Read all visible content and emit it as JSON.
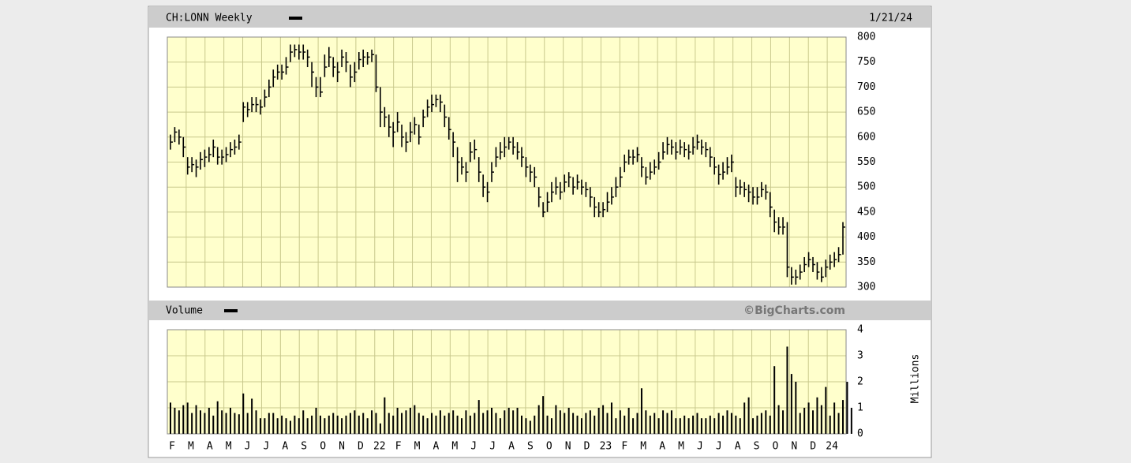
{
  "chart_data": [
    {
      "type": "ohlc",
      "title": "CH:LONN Weekly",
      "date": "1/21/24",
      "plot_color": "#ffffcc",
      "grid_color": "#c8c88c",
      "bar_color": "#000000",
      "grid": true,
      "categories": [
        "F",
        "M",
        "A",
        "M",
        "J",
        "J",
        "A",
        "S",
        "O",
        "N",
        "D",
        "22",
        "F",
        "M",
        "A",
        "M",
        "J",
        "J",
        "A",
        "S",
        "O",
        "N",
        "D",
        "23",
        "F",
        "M",
        "A",
        "M",
        "J",
        "J",
        "A",
        "S",
        "O",
        "N",
        "D",
        "24"
      ],
      "ylim": [
        300,
        800
      ],
      "yticks": [
        300,
        350,
        400,
        450,
        500,
        550,
        600,
        650,
        700,
        750,
        800
      ],
      "series": [
        {
          "name": "CH:LONN",
          "high": [
            605,
            620,
            615,
            600,
            560,
            560,
            555,
            570,
            575,
            580,
            595,
            580,
            575,
            580,
            590,
            595,
            605,
            670,
            670,
            680,
            680,
            675,
            695,
            715,
            735,
            745,
            745,
            760,
            785,
            785,
            785,
            785,
            775,
            750,
            720,
            720,
            765,
            780,
            760,
            750,
            775,
            770,
            745,
            750,
            770,
            775,
            770,
            775,
            765,
            700,
            660,
            645,
            630,
            650,
            625,
            610,
            630,
            640,
            625,
            655,
            675,
            685,
            685,
            685,
            665,
            640,
            610,
            580,
            560,
            550,
            590,
            595,
            560,
            525,
            510,
            550,
            580,
            590,
            600,
            600,
            600,
            590,
            580,
            560,
            545,
            540,
            500,
            470,
            490,
            510,
            520,
            510,
            525,
            530,
            520,
            525,
            515,
            510,
            500,
            480,
            470,
            470,
            490,
            500,
            520,
            540,
            565,
            575,
            575,
            580,
            560,
            540,
            550,
            555,
            570,
            590,
            600,
            595,
            590,
            595,
            590,
            585,
            600,
            605,
            595,
            590,
            580,
            560,
            545,
            550,
            560,
            565,
            520,
            515,
            510,
            505,
            500,
            500,
            510,
            505,
            490,
            455,
            440,
            440,
            430,
            340,
            335,
            345,
            360,
            370,
            360,
            350,
            340,
            355,
            365,
            370,
            380,
            430
          ],
          "low": [
            575,
            590,
            585,
            560,
            525,
            530,
            520,
            535,
            540,
            550,
            560,
            545,
            545,
            550,
            560,
            565,
            575,
            630,
            640,
            650,
            650,
            645,
            660,
            680,
            700,
            715,
            715,
            725,
            750,
            760,
            755,
            755,
            740,
            700,
            680,
            680,
            720,
            740,
            720,
            710,
            740,
            730,
            700,
            710,
            735,
            740,
            745,
            750,
            690,
            620,
            620,
            600,
            580,
            610,
            580,
            570,
            590,
            605,
            585,
            620,
            640,
            650,
            660,
            650,
            620,
            595,
            560,
            510,
            525,
            510,
            550,
            555,
            510,
            480,
            470,
            510,
            540,
            555,
            560,
            575,
            565,
            555,
            540,
            520,
            510,
            500,
            460,
            440,
            450,
            470,
            485,
            475,
            490,
            500,
            485,
            495,
            485,
            480,
            460,
            440,
            440,
            440,
            450,
            465,
            480,
            500,
            530,
            545,
            545,
            550,
            520,
            505,
            515,
            525,
            535,
            555,
            565,
            565,
            555,
            565,
            560,
            555,
            565,
            575,
            565,
            560,
            540,
            525,
            505,
            515,
            525,
            530,
            480,
            485,
            480,
            470,
            465,
            465,
            480,
            475,
            440,
            410,
            405,
            405,
            320,
            305,
            305,
            315,
            330,
            340,
            330,
            315,
            310,
            320,
            335,
            340,
            350,
            365
          ],
          "close": [
            590,
            610,
            600,
            580,
            540,
            545,
            540,
            555,
            560,
            565,
            580,
            560,
            560,
            565,
            575,
            580,
            590,
            660,
            655,
            665,
            665,
            660,
            680,
            700,
            720,
            730,
            730,
            740,
            770,
            775,
            770,
            770,
            760,
            730,
            700,
            690,
            740,
            760,
            740,
            730,
            760,
            750,
            720,
            730,
            755,
            760,
            760,
            765,
            700,
            650,
            640,
            620,
            610,
            630,
            600,
            590,
            610,
            625,
            600,
            640,
            660,
            665,
            675,
            670,
            640,
            615,
            590,
            550,
            540,
            530,
            570,
            575,
            530,
            500,
            490,
            530,
            560,
            570,
            580,
            590,
            580,
            570,
            560,
            540,
            530,
            520,
            480,
            450,
            470,
            490,
            500,
            490,
            510,
            520,
            500,
            510,
            500,
            495,
            480,
            460,
            450,
            455,
            470,
            480,
            500,
            520,
            550,
            560,
            560,
            565,
            540,
            520,
            530,
            540,
            550,
            570,
            585,
            580,
            570,
            580,
            575,
            570,
            580,
            590,
            580,
            575,
            560,
            540,
            525,
            530,
            540,
            550,
            500,
            500,
            495,
            490,
            480,
            480,
            495,
            490,
            460,
            430,
            420,
            420,
            340,
            320,
            320,
            330,
            345,
            355,
            345,
            330,
            320,
            340,
            350,
            355,
            365,
            420
          ]
        }
      ]
    },
    {
      "type": "volume",
      "title": "Volume",
      "credit": "©BigCharts.com",
      "y_label": "Millions",
      "plot_color": "#ffffcc",
      "grid_color": "#c8c88c",
      "bar_color": "#000000",
      "grid": true,
      "ylim": [
        0,
        4
      ],
      "yticks": [
        0,
        1,
        2,
        3,
        4
      ],
      "series": [
        {
          "name": "Volume",
          "values": [
            1.2,
            1.0,
            0.9,
            1.1,
            1.2,
            0.8,
            1.1,
            0.9,
            0.8,
            1.0,
            0.7,
            1.25,
            0.9,
            0.8,
            1.0,
            0.8,
            0.75,
            1.55,
            0.8,
            1.35,
            0.9,
            0.6,
            0.6,
            0.8,
            0.8,
            0.6,
            0.7,
            0.6,
            0.5,
            0.7,
            0.6,
            0.9,
            0.6,
            0.7,
            1.0,
            0.7,
            0.6,
            0.7,
            0.8,
            0.7,
            0.6,
            0.7,
            0.8,
            0.9,
            0.7,
            0.8,
            0.6,
            0.9,
            0.8,
            0.4,
            1.4,
            0.8,
            0.7,
            1.0,
            0.8,
            0.9,
            1.0,
            1.1,
            0.8,
            0.7,
            0.6,
            0.8,
            0.7,
            0.9,
            0.7,
            0.8,
            0.9,
            0.7,
            0.6,
            0.9,
            0.7,
            0.8,
            1.3,
            0.8,
            0.9,
            1.0,
            0.8,
            0.6,
            0.9,
            1.0,
            0.9,
            1.0,
            0.7,
            0.6,
            0.5,
            0.7,
            1.1,
            1.45,
            0.7,
            0.6,
            1.1,
            0.9,
            0.8,
            1.0,
            0.8,
            0.7,
            0.6,
            0.8,
            0.9,
            0.7,
            1.0,
            1.1,
            0.8,
            1.2,
            0.6,
            0.9,
            0.7,
            1.0,
            0.6,
            0.8,
            1.75,
            0.9,
            0.7,
            0.8,
            0.6,
            0.9,
            0.8,
            0.9,
            0.6,
            0.6,
            0.7,
            0.6,
            0.7,
            0.8,
            0.6,
            0.6,
            0.7,
            0.6,
            0.8,
            0.7,
            0.9,
            0.8,
            0.7,
            0.6,
            1.2,
            1.4,
            0.6,
            0.7,
            0.8,
            0.9,
            0.7,
            2.6,
            1.1,
            0.9,
            3.35,
            2.3,
            2.0,
            0.8,
            1.0,
            1.2,
            0.9,
            1.4,
            1.1,
            1.8,
            0.7,
            1.2,
            0.8,
            1.3,
            2.0,
            1.0
          ]
        }
      ]
    }
  ]
}
